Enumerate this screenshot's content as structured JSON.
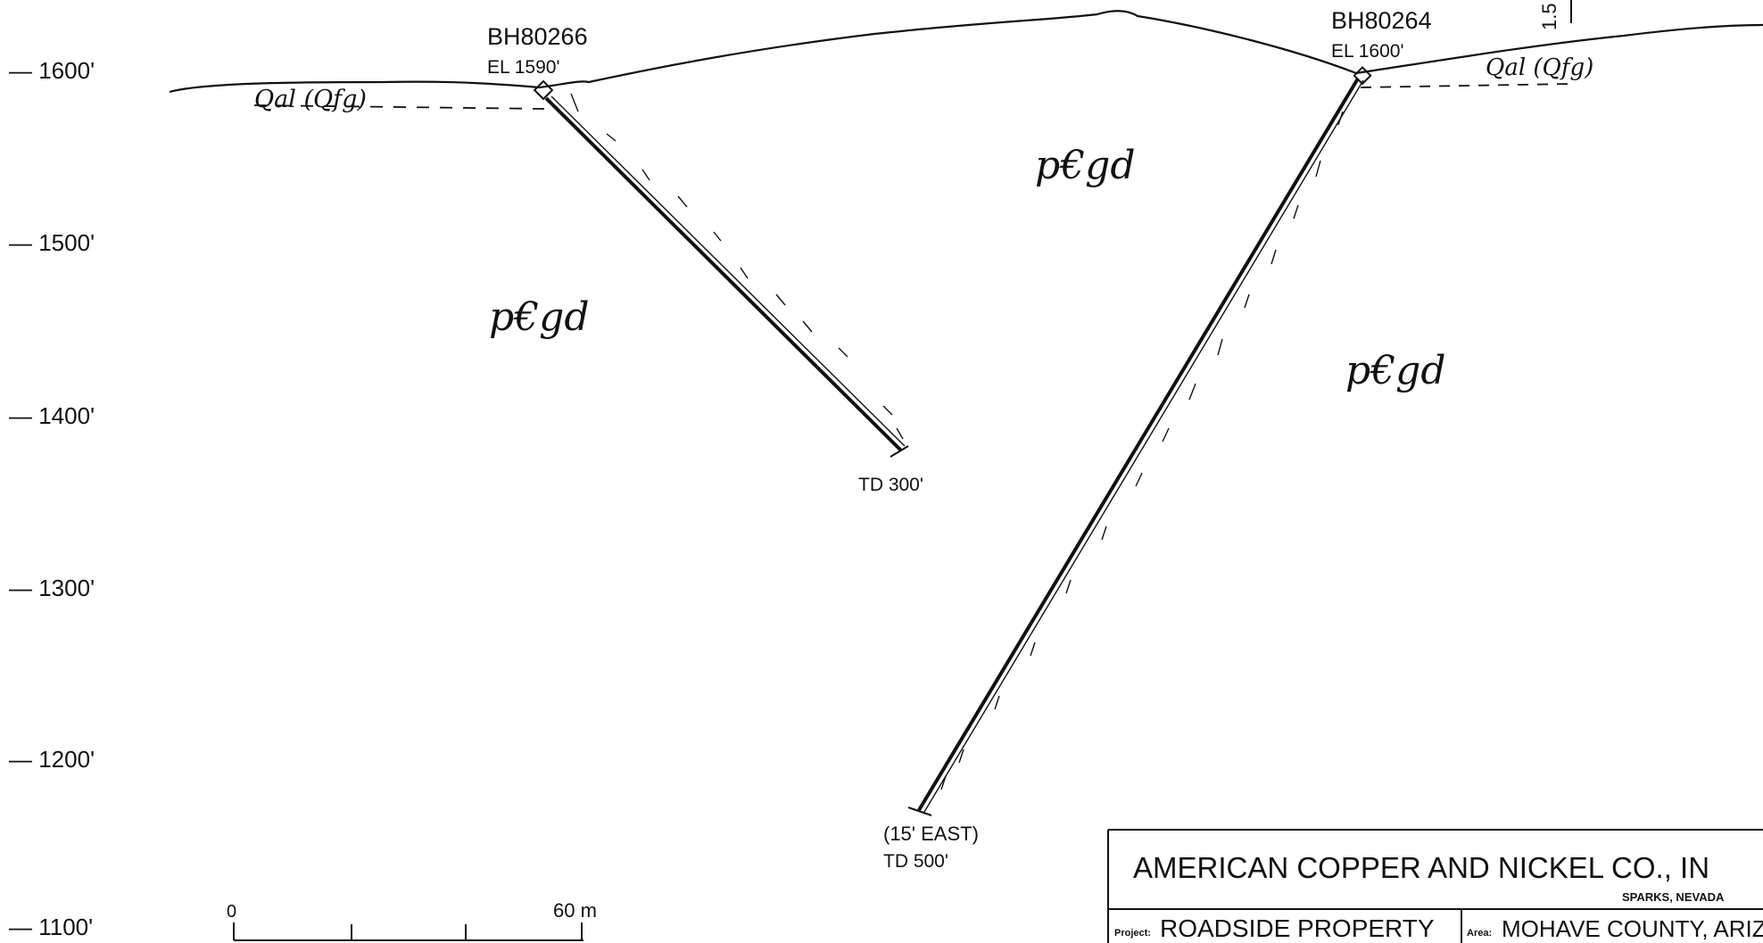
{
  "elevation_labels": [
    "— 1600'",
    "— 1500'",
    "— 1400'",
    "— 1300'",
    "— 1200'",
    "— 1100'"
  ],
  "boreholes": [
    {
      "name": "BH80266",
      "elevation": "EL 1590'",
      "total_depth": "TD 300'",
      "note": ""
    },
    {
      "name": "BH80264",
      "elevation": "EL 1600'",
      "total_depth": "TD 500'",
      "note": "(15' EAST)"
    }
  ],
  "units": {
    "alluvium_left": "Qal (Qfg)",
    "alluvium_right": "Qal (Qfg)",
    "bedrock": "p€gd"
  },
  "scale_bar": {
    "start": "0",
    "end": "60 m"
  },
  "corner_mark": "1.5",
  "title_block": {
    "company": "AMERICAN COPPER AND NICKEL CO., IN",
    "location": "SPARKS, NEVADA",
    "project_label": "Project:",
    "project": "ROADSIDE PROPERTY",
    "area_label": "Area:",
    "area": "MOHAVE COUNTY, ARIZO"
  },
  "colors": {
    "ink": "#111111",
    "paper": "#ffffff"
  }
}
